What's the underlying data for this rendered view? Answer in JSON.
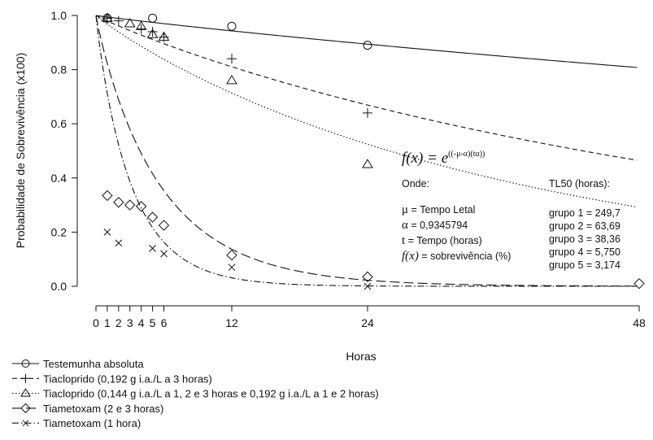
{
  "chart_data": {
    "type": "scatter",
    "xlabel": "Horas",
    "ylabel": "Probabilidade de Sobrevivência (x100)",
    "xlim": [
      0,
      48
    ],
    "ylim": [
      0,
      1.0
    ],
    "x_ticks": [
      0,
      1,
      2,
      3,
      4,
      5,
      6,
      12,
      24,
      48
    ],
    "x_tick_labels": [
      "0",
      "1",
      "2",
      "3",
      "4",
      "5",
      "6",
      "12",
      "24",
      "48"
    ],
    "y_ticks": [
      0.0,
      0.2,
      0.4,
      0.6,
      0.8,
      1.0
    ],
    "y_tick_labels": [
      "0.0",
      "0.2",
      "0.4",
      "0.6",
      "0.8",
      "1.0"
    ],
    "grid": false,
    "legend_position": "bottom-left",
    "series": [
      {
        "name": "Testemunha absoluta",
        "marker": "circle",
        "line": "solid",
        "tl50": 249.7,
        "x": [
          1,
          5,
          12,
          24
        ],
        "y": [
          0.99,
          0.99,
          0.96,
          0.89
        ]
      },
      {
        "name": "Tiacloprido (0,192 g i.a./L a 3 horas)",
        "marker": "plus",
        "line": "dashed",
        "tl50": 63.69,
        "x": [
          1,
          2,
          4,
          5,
          6,
          12,
          24
        ],
        "y": [
          0.99,
          0.98,
          0.95,
          0.94,
          0.92,
          0.84,
          0.64
        ]
      },
      {
        "name": "Tiacloprido (0,144 g i.a./L a 1, 2 e 3 horas e 0,192 g i.a./L a 1 e 2 horas)",
        "marker": "triangle",
        "line": "dotted",
        "tl50": 38.36,
        "x": [
          1,
          3,
          4,
          5,
          6,
          12,
          24
        ],
        "y": [
          0.99,
          0.97,
          0.96,
          0.93,
          0.92,
          0.76,
          0.45
        ]
      },
      {
        "name": "Tiametoxam (2 e 3 horas)",
        "marker": "diamond",
        "line": "longdash",
        "tl50": 5.75,
        "x": [
          1,
          2,
          3,
          4,
          5,
          6,
          12,
          24,
          48
        ],
        "y": [
          0.335,
          0.31,
          0.3,
          0.295,
          0.255,
          0.225,
          0.115,
          0.035,
          0.01
        ]
      },
      {
        "name": "Tiametoxam (1 hora)",
        "marker": "cross",
        "line": "dashdot",
        "tl50": 3.174,
        "x": [
          1,
          2,
          5,
          6,
          12,
          24
        ],
        "y": [
          0.2,
          0.16,
          0.14,
          0.12,
          0.07,
          0.0
        ]
      }
    ],
    "model": {
      "alpha": 0.9345794
    },
    "annotations": {
      "formula_lhs": "f(x) = e",
      "formula_exp": "((-μ-α)(tα))",
      "onde": "Onde:",
      "defs": [
        {
          "sym": "μ",
          "text": " = Tempo Letal"
        },
        {
          "sym": "α",
          "text": " = 0,9345794"
        },
        {
          "sym": "t",
          "text": " = Tempo (horas)"
        },
        {
          "sym": "f(x)",
          "text": " = sobrevivência (%)"
        }
      ],
      "tl50_title": "TL50 (horas):",
      "tl50_lines": [
        "grupo 1 = 249,7",
        "grupo 2 = 63,69",
        "grupo 3 = 38,36",
        "grupo 4 = 5,750",
        "grupo 5 = 3,174"
      ]
    }
  }
}
